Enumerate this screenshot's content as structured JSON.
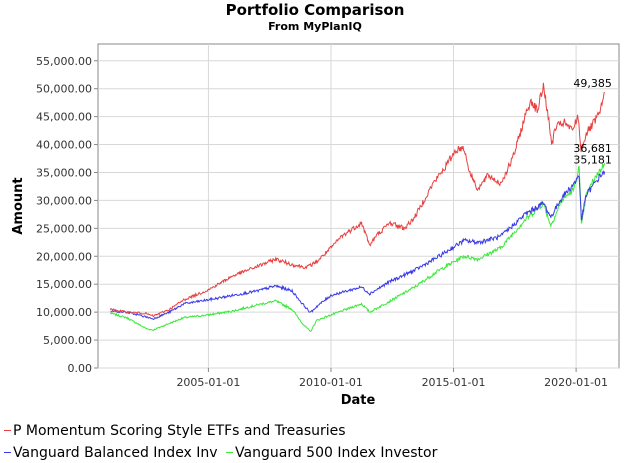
{
  "chart_data": {
    "type": "line",
    "title": "Portfolio Comparison",
    "subtitle": "From MyPlanIQ",
    "xlabel": "Date",
    "ylabel": "Amount",
    "ylim": [
      0,
      58000
    ],
    "xlim": [
      "2000-07-01",
      "2021-10-01"
    ],
    "y_ticks": [
      0,
      5000,
      10000,
      15000,
      20000,
      25000,
      30000,
      35000,
      40000,
      45000,
      50000,
      55000
    ],
    "y_tick_labels": [
      "0.00",
      "5,000.00",
      "10,000.00",
      "15,000.00",
      "20,000.00",
      "25,000.00",
      "30,000.00",
      "35,000.00",
      "40,000.00",
      "45,000.00",
      "50,000.00",
      "55,000.00"
    ],
    "x_ticks": [
      "2005-01-01",
      "2010-01-01",
      "2015-01-01",
      "2020-01-01"
    ],
    "grid": true,
    "legend": "bottom",
    "series": [
      {
        "name": "P Momentum Scoring Style ETFs and Treasuries",
        "color": "#e84040",
        "end_label": "49,385",
        "x": [
          "2001-01-01",
          "2001-09-01",
          "2002-06-01",
          "2002-10-01",
          "2003-06-01",
          "2004-01-01",
          "2005-01-01",
          "2006-01-01",
          "2007-01-01",
          "2007-10-01",
          "2008-06-01",
          "2009-01-01",
          "2009-06-01",
          "2010-01-01",
          "2010-06-01",
          "2011-04-01",
          "2011-08-01",
          "2011-12-01",
          "2012-06-01",
          "2013-01-01",
          "2013-06-01",
          "2014-03-01",
          "2014-09-01",
          "2015-02-01",
          "2015-06-01",
          "2015-09-01",
          "2016-01-01",
          "2016-06-01",
          "2016-12-01",
          "2017-06-01",
          "2017-12-01",
          "2018-03-01",
          "2018-06-01",
          "2018-09-01",
          "2018-11-01",
          "2019-01-01",
          "2019-03-01",
          "2019-07-01",
          "2019-11-01",
          "2020-02-01",
          "2020-03-15",
          "2020-06-01",
          "2020-10-01",
          "2021-01-01",
          "2021-03-01"
        ],
        "values": [
          10500,
          10000,
          9800,
          9300,
          10500,
          12200,
          14000,
          16500,
          18200,
          19500,
          18500,
          18000,
          19000,
          21500,
          23500,
          26000,
          22000,
          24000,
          26000,
          25000,
          27000,
          33000,
          36000,
          39000,
          39500,
          35000,
          32000,
          34500,
          33000,
          37500,
          45000,
          48000,
          46000,
          50500,
          46000,
          40000,
          43000,
          44000,
          42500,
          45000,
          39000,
          42000,
          44000,
          46000,
          49385
        ]
      },
      {
        "name": "Vanguard Balanced Index Inv",
        "color": "#3a3ae8",
        "end_label": "35,181",
        "x": [
          "2001-01-01",
          "2001-09-01",
          "2002-06-01",
          "2002-10-01",
          "2003-06-01",
          "2004-01-01",
          "2005-01-01",
          "2006-01-01",
          "2007-01-01",
          "2007-10-01",
          "2008-06-01",
          "2008-11-01",
          "2009-03-01",
          "2009-06-01",
          "2010-01-01",
          "2011-04-01",
          "2011-08-01",
          "2012-06-01",
          "2013-06-01",
          "2014-06-01",
          "2015-06-01",
          "2016-01-01",
          "2016-12-01",
          "2017-12-01",
          "2018-09-01",
          "2018-12-20",
          "2019-06-01",
          "2019-12-01",
          "2020-02-15",
          "2020-03-20",
          "2020-06-01",
          "2020-10-01",
          "2021-01-01",
          "2021-03-01"
        ],
        "values": [
          10200,
          10000,
          9200,
          8800,
          10000,
          11500,
          12200,
          13000,
          13800,
          14700,
          13800,
          11500,
          9900,
          11000,
          13000,
          14500,
          13300,
          15500,
          17500,
          20000,
          22800,
          22500,
          23500,
          27500,
          29500,
          27000,
          30500,
          33000,
          34500,
          26500,
          31000,
          33000,
          34500,
          35181
        ]
      },
      {
        "name": "Vanguard 500 Index Investor",
        "color": "#3ce83c",
        "end_label": "36,681",
        "x": [
          "2001-01-01",
          "2001-09-01",
          "2002-07-01",
          "2002-10-01",
          "2003-06-01",
          "2004-01-01",
          "2005-01-01",
          "2006-01-01",
          "2007-01-01",
          "2007-10-01",
          "2008-06-01",
          "2008-11-01",
          "2009-03-01",
          "2009-06-01",
          "2010-01-01",
          "2011-04-01",
          "2011-08-01",
          "2012-06-01",
          "2013-06-01",
          "2014-06-01",
          "2015-06-01",
          "2016-01-01",
          "2016-12-01",
          "2017-12-01",
          "2018-09-01",
          "2018-12-20",
          "2019-06-01",
          "2019-12-01",
          "2020-02-15",
          "2020-03-20",
          "2020-06-01",
          "2020-10-01",
          "2021-01-01",
          "2021-03-01"
        ],
        "values": [
          9800,
          9000,
          7000,
          6800,
          8000,
          9000,
          9500,
          10200,
          11300,
          12000,
          10500,
          8000,
          6500,
          8500,
          9500,
          11500,
          10000,
          12000,
          14500,
          17500,
          20000,
          19500,
          21500,
          26500,
          29500,
          25500,
          30000,
          32000,
          36000,
          25500,
          31000,
          34000,
          35500,
          36681
        ]
      }
    ]
  }
}
